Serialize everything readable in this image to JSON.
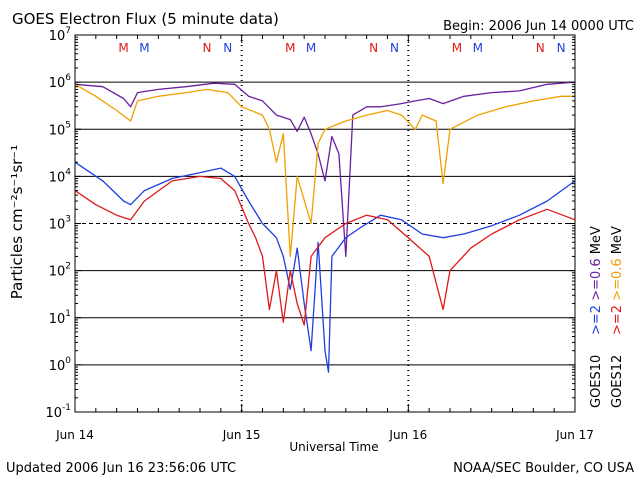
{
  "header": {
    "title": "GOES Electron Flux (5 minute data)",
    "begin": "Begin: 2006 Jun 14 0000 UTC"
  },
  "footer": {
    "updated": "Updated 2006 Jun 16 23:56:06 UTC",
    "credit": "NOAA/SEC Boulder, CO USA"
  },
  "colors": {
    "goes10_2mev": "#1f3fe0",
    "goes12_2mev": "#e01818",
    "goes10_06mev": "#6a1fa0",
    "goes12_06mev": "#f0a000",
    "marker_m": "#e01818",
    "marker_n": "#1f3fe0"
  },
  "chart_data": {
    "type": "line",
    "title": "GOES Electron Flux (5 minute data)",
    "xlabel": "Universal Time",
    "ylabel": "Particles cm⁻²s⁻¹sr⁻¹",
    "y_scale": "log",
    "ylim": [
      0.1,
      10000000
    ],
    "xlim": [
      "2006-06-14 00:00",
      "2006-06-17 00:00"
    ],
    "x_ticks": [
      {
        "x": "2006-06-14 00:00",
        "label": "Jun 14"
      },
      {
        "x": "2006-06-15 00:00",
        "label": "Jun 15"
      },
      {
        "x": "2006-06-16 00:00",
        "label": "Jun 16"
      },
      {
        "x": "2006-06-17 00:00",
        "label": "Jun 17"
      }
    ],
    "y_ticks": [
      {
        "exp": -1,
        "value": 0.1
      },
      {
        "exp": 0,
        "value": 1
      },
      {
        "exp": 1,
        "value": 10
      },
      {
        "exp": 2,
        "value": 100
      },
      {
        "exp": 3,
        "value": 1000
      },
      {
        "exp": 4,
        "value": 10000
      },
      {
        "exp": 5,
        "value": 100000
      },
      {
        "exp": 6,
        "value": 1000000
      },
      {
        "exp": 7,
        "value": 10000000
      }
    ],
    "reference_lines": [
      {
        "value": 1,
        "style": "solid"
      },
      {
        "value": 10,
        "style": "solid"
      },
      {
        "value": 100,
        "style": "solid"
      },
      {
        "value": 1000,
        "style": "dashed"
      },
      {
        "value": 10000,
        "style": "solid"
      },
      {
        "value": 100000,
        "style": "solid"
      },
      {
        "value": 1000000,
        "style": "solid"
      }
    ],
    "markers": [
      {
        "label": "M",
        "x": "2006-06-14 07:00",
        "color": "#e01818"
      },
      {
        "label": "M",
        "x": "2006-06-14 10:00",
        "color": "#1f3fe0"
      },
      {
        "label": "N",
        "x": "2006-06-14 19:00",
        "color": "#e01818"
      },
      {
        "label": "N",
        "x": "2006-06-14 22:00",
        "color": "#1f3fe0"
      },
      {
        "label": "M",
        "x": "2006-06-15 07:00",
        "color": "#e01818"
      },
      {
        "label": "M",
        "x": "2006-06-15 10:00",
        "color": "#1f3fe0"
      },
      {
        "label": "N",
        "x": "2006-06-15 19:00",
        "color": "#e01818"
      },
      {
        "label": "N",
        "x": "2006-06-15 22:00",
        "color": "#1f3fe0"
      },
      {
        "label": "M",
        "x": "2006-06-16 07:00",
        "color": "#e01818"
      },
      {
        "label": "M",
        "x": "2006-06-16 10:00",
        "color": "#1f3fe0"
      },
      {
        "label": "N",
        "x": "2006-06-16 19:00",
        "color": "#e01818"
      },
      {
        "label": "N",
        "x": "2006-06-16 22:00",
        "color": "#1f3fe0"
      }
    ],
    "legend": {
      "placement": "right",
      "groups": [
        {
          "label": "GOES10",
          "entries": [
            {
              "text": ">=2",
              "color": "#1f3fe0"
            },
            {
              "text": ">=0.6",
              "color": "#6a1fa0"
            },
            {
              "text": "MeV",
              "color": "#000000"
            }
          ]
        },
        {
          "label": "GOES12",
          "entries": [
            {
              "text": ">=2",
              "color": "#e01818"
            },
            {
              "text": ">=0.6",
              "color": "#f0a000"
            },
            {
              "text": "MeV",
              "color": "#000000"
            }
          ]
        }
      ]
    },
    "series": [
      {
        "satellite": "GOES10",
        "energy": ">=0.6",
        "color": "#6a1fa0",
        "points": [
          [
            "2006-06-14 00:00",
            900000
          ],
          [
            "2006-06-14 04:00",
            800000
          ],
          [
            "2006-06-14 07:00",
            450000
          ],
          [
            "2006-06-14 08:00",
            300000
          ],
          [
            "2006-06-14 09:00",
            600000
          ],
          [
            "2006-06-14 12:00",
            700000
          ],
          [
            "2006-06-14 16:00",
            800000
          ],
          [
            "2006-06-14 20:00",
            950000
          ],
          [
            "2006-06-14 23:00",
            900000
          ],
          [
            "2006-06-15 01:00",
            500000
          ],
          [
            "2006-06-15 03:00",
            400000
          ],
          [
            "2006-06-15 05:00",
            200000
          ],
          [
            "2006-06-15 06:00",
            180000
          ],
          [
            "2006-06-15 07:00",
            160000
          ],
          [
            "2006-06-15 08:00",
            90000
          ],
          [
            "2006-06-15 09:00",
            180000
          ],
          [
            "2006-06-15 10:00",
            80000
          ],
          [
            "2006-06-15 11:00",
            30000
          ],
          [
            "2006-06-15 12:00",
            8000
          ],
          [
            "2006-06-15 13:00",
            70000
          ],
          [
            "2006-06-15 14:00",
            30000
          ],
          [
            "2006-06-15 15:00",
            200
          ],
          [
            "2006-06-15 16:00",
            200000
          ],
          [
            "2006-06-15 18:00",
            300000
          ],
          [
            "2006-06-15 20:00",
            300000
          ],
          [
            "2006-06-15 23:00",
            350000
          ],
          [
            "2006-06-16 01:00",
            400000
          ],
          [
            "2006-06-16 03:00",
            450000
          ],
          [
            "2006-06-16 05:00",
            350000
          ],
          [
            "2006-06-16 08:00",
            500000
          ],
          [
            "2006-06-16 12:00",
            600000
          ],
          [
            "2006-06-16 16:00",
            650000
          ],
          [
            "2006-06-16 20:00",
            900000
          ],
          [
            "2006-06-17 00:00",
            1000000
          ]
        ]
      },
      {
        "satellite": "GOES12",
        "energy": ">=0.6",
        "color": "#f0a000",
        "points": [
          [
            "2006-06-14 00:00",
            900000
          ],
          [
            "2006-06-14 03:00",
            500000
          ],
          [
            "2006-06-14 06:00",
            250000
          ],
          [
            "2006-06-14 08:00",
            150000
          ],
          [
            "2006-06-14 09:00",
            400000
          ],
          [
            "2006-06-14 12:00",
            500000
          ],
          [
            "2006-06-14 16:00",
            600000
          ],
          [
            "2006-06-14 19:00",
            700000
          ],
          [
            "2006-06-14 22:00",
            600000
          ],
          [
            "2006-06-15 00:00",
            300000
          ],
          [
            "2006-06-15 03:00",
            200000
          ],
          [
            "2006-06-15 04:00",
            100000
          ],
          [
            "2006-06-15 05:00",
            20000
          ],
          [
            "2006-06-15 06:00",
            80000
          ],
          [
            "2006-06-15 07:00",
            200
          ],
          [
            "2006-06-15 08:00",
            10000
          ],
          [
            "2006-06-15 10:00",
            1000
          ],
          [
            "2006-06-15 11:00",
            50000
          ],
          [
            "2006-06-15 12:00",
            100000
          ],
          [
            "2006-06-15 15:00",
            150000
          ],
          [
            "2006-06-15 18:00",
            200000
          ],
          [
            "2006-06-15 21:00",
            250000
          ],
          [
            "2006-06-15 23:00",
            200000
          ],
          [
            "2006-06-16 01:00",
            100000
          ],
          [
            "2006-06-16 02:00",
            200000
          ],
          [
            "2006-06-16 04:00",
            150000
          ],
          [
            "2006-06-16 05:00",
            7000
          ],
          [
            "2006-06-16 06:00",
            100000
          ],
          [
            "2006-06-16 10:00",
            200000
          ],
          [
            "2006-06-16 14:00",
            300000
          ],
          [
            "2006-06-16 18:00",
            400000
          ],
          [
            "2006-06-16 22:00",
            500000
          ],
          [
            "2006-06-17 00:00",
            500000
          ]
        ]
      },
      {
        "satellite": "GOES10",
        "energy": ">=2",
        "color": "#1f3fe0",
        "points": [
          [
            "2006-06-14 00:00",
            20000
          ],
          [
            "2006-06-14 04:00",
            8000
          ],
          [
            "2006-06-14 07:00",
            3000
          ],
          [
            "2006-06-14 08:00",
            2500
          ],
          [
            "2006-06-14 10:00",
            5000
          ],
          [
            "2006-06-14 14:00",
            9000
          ],
          [
            "2006-06-14 18:00",
            12000
          ],
          [
            "2006-06-14 21:00",
            15000
          ],
          [
            "2006-06-14 23:00",
            10000
          ],
          [
            "2006-06-15 01:00",
            3000
          ],
          [
            "2006-06-15 03:00",
            1000
          ],
          [
            "2006-06-15 05:00",
            500
          ],
          [
            "2006-06-15 06:00",
            200
          ],
          [
            "2006-06-15 07:00",
            40
          ],
          [
            "2006-06-15 08:00",
            300
          ],
          [
            "2006-06-15 09:00",
            20
          ],
          [
            "2006-06-15 10:00",
            2
          ],
          [
            "2006-06-15 11:00",
            400
          ],
          [
            "2006-06-15 12:00",
            2
          ],
          [
            "2006-06-15 12:30",
            0.7
          ],
          [
            "2006-06-15 13:00",
            200
          ],
          [
            "2006-06-15 15:00",
            500
          ],
          [
            "2006-06-15 17:00",
            800
          ],
          [
            "2006-06-15 20:00",
            1500
          ],
          [
            "2006-06-15 23:00",
            1200
          ],
          [
            "2006-06-16 02:00",
            600
          ],
          [
            "2006-06-16 05:00",
            500
          ],
          [
            "2006-06-16 08:00",
            600
          ],
          [
            "2006-06-16 12:00",
            900
          ],
          [
            "2006-06-16 16:00",
            1500
          ],
          [
            "2006-06-16 20:00",
            3000
          ],
          [
            "2006-06-17 00:00",
            8000
          ]
        ]
      },
      {
        "satellite": "GOES12",
        "energy": ">=2",
        "color": "#e01818",
        "points": [
          [
            "2006-06-14 00:00",
            5000
          ],
          [
            "2006-06-14 03:00",
            2500
          ],
          [
            "2006-06-14 06:00",
            1500
          ],
          [
            "2006-06-14 08:00",
            1200
          ],
          [
            "2006-06-14 10:00",
            3000
          ],
          [
            "2006-06-14 14:00",
            8000
          ],
          [
            "2006-06-14 18:00",
            10000
          ],
          [
            "2006-06-14 21:00",
            9000
          ],
          [
            "2006-06-14 23:00",
            5000
          ],
          [
            "2006-06-15 01:00",
            1000
          ],
          [
            "2006-06-15 02:00",
            500
          ],
          [
            "2006-06-15 03:00",
            200
          ],
          [
            "2006-06-15 04:00",
            15
          ],
          [
            "2006-06-15 05:00",
            100
          ],
          [
            "2006-06-15 06:00",
            8
          ],
          [
            "2006-06-15 07:00",
            100
          ],
          [
            "2006-06-15 08:00",
            20
          ],
          [
            "2006-06-15 09:00",
            7
          ],
          [
            "2006-06-15 10:00",
            200
          ],
          [
            "2006-06-15 12:00",
            500
          ],
          [
            "2006-06-15 15:00",
            1000
          ],
          [
            "2006-06-15 18:00",
            1500
          ],
          [
            "2006-06-15 21:00",
            1200
          ],
          [
            "2006-06-16 00:00",
            500
          ],
          [
            "2006-06-16 03:00",
            200
          ],
          [
            "2006-06-16 05:00",
            15
          ],
          [
            "2006-06-16 06:00",
            100
          ],
          [
            "2006-06-16 09:00",
            300
          ],
          [
            "2006-06-16 12:00",
            600
          ],
          [
            "2006-06-16 16:00",
            1200
          ],
          [
            "2006-06-16 20:00",
            2000
          ],
          [
            "2006-06-17 00:00",
            1200
          ]
        ]
      }
    ]
  }
}
